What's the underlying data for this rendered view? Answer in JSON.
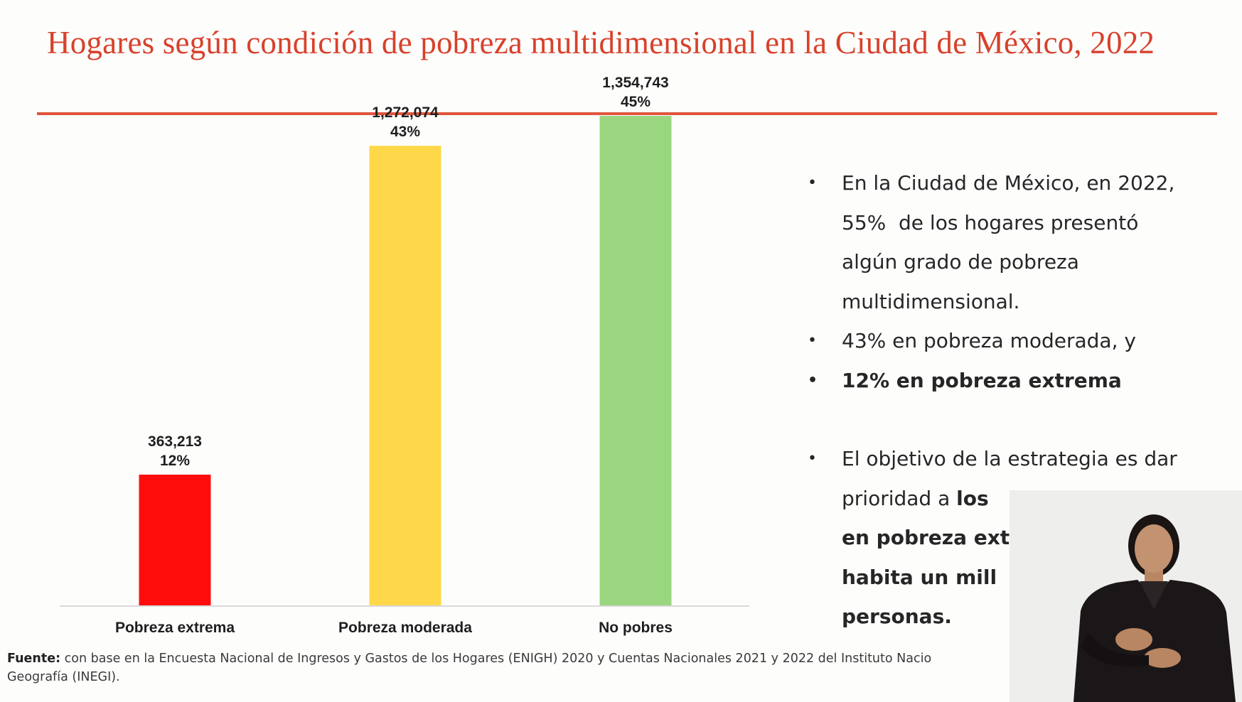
{
  "slide": {
    "title": "Hogares según condición de pobreza multidimensional en la Ciudad de México, 2022",
    "accent_color": "#d8412b"
  },
  "chart_data": {
    "type": "bar",
    "categories": [
      "Pobreza extrema",
      "Pobreza moderada",
      "No pobres"
    ],
    "values": [
      363213,
      1272074,
      1354743
    ],
    "value_labels": [
      "363,213",
      "1,272,074",
      "1,354,743"
    ],
    "percent_labels": [
      "12%",
      "43%",
      "45%"
    ],
    "colors": [
      "#ff0d0d",
      "#ffd84a",
      "#99d67f"
    ],
    "ylim": [
      0,
      1400000
    ],
    "title": "",
    "xlabel": "",
    "ylabel": "",
    "grid": false
  },
  "bullets": {
    "b1": {
      "l1": "En la Ciudad de México, en 2022,",
      "l2": "55%  de los hogares presentó",
      "l3": "algún grado de pobreza",
      "l4": "multidimensional."
    },
    "b2": "43% en pobreza moderada, y",
    "b3": "12% en pobreza extrema",
    "b4": {
      "l1": "El objetivo de la estrategia es dar",
      "l2a": "prioridad a ",
      "l2b": "los ",
      "l3": "en pobreza ext",
      "l4": "habita un mill",
      "l5": "personas."
    }
  },
  "source": {
    "label": "Fuente:",
    "text": " con base en la Encuesta Nacional de Ingresos y Gastos de los Hogares (ENIGH) 2020 y Cuentas Nacionales 2021 y 2022 del Instituto Nacio",
    "text2": "Geografía (INEGI)."
  }
}
